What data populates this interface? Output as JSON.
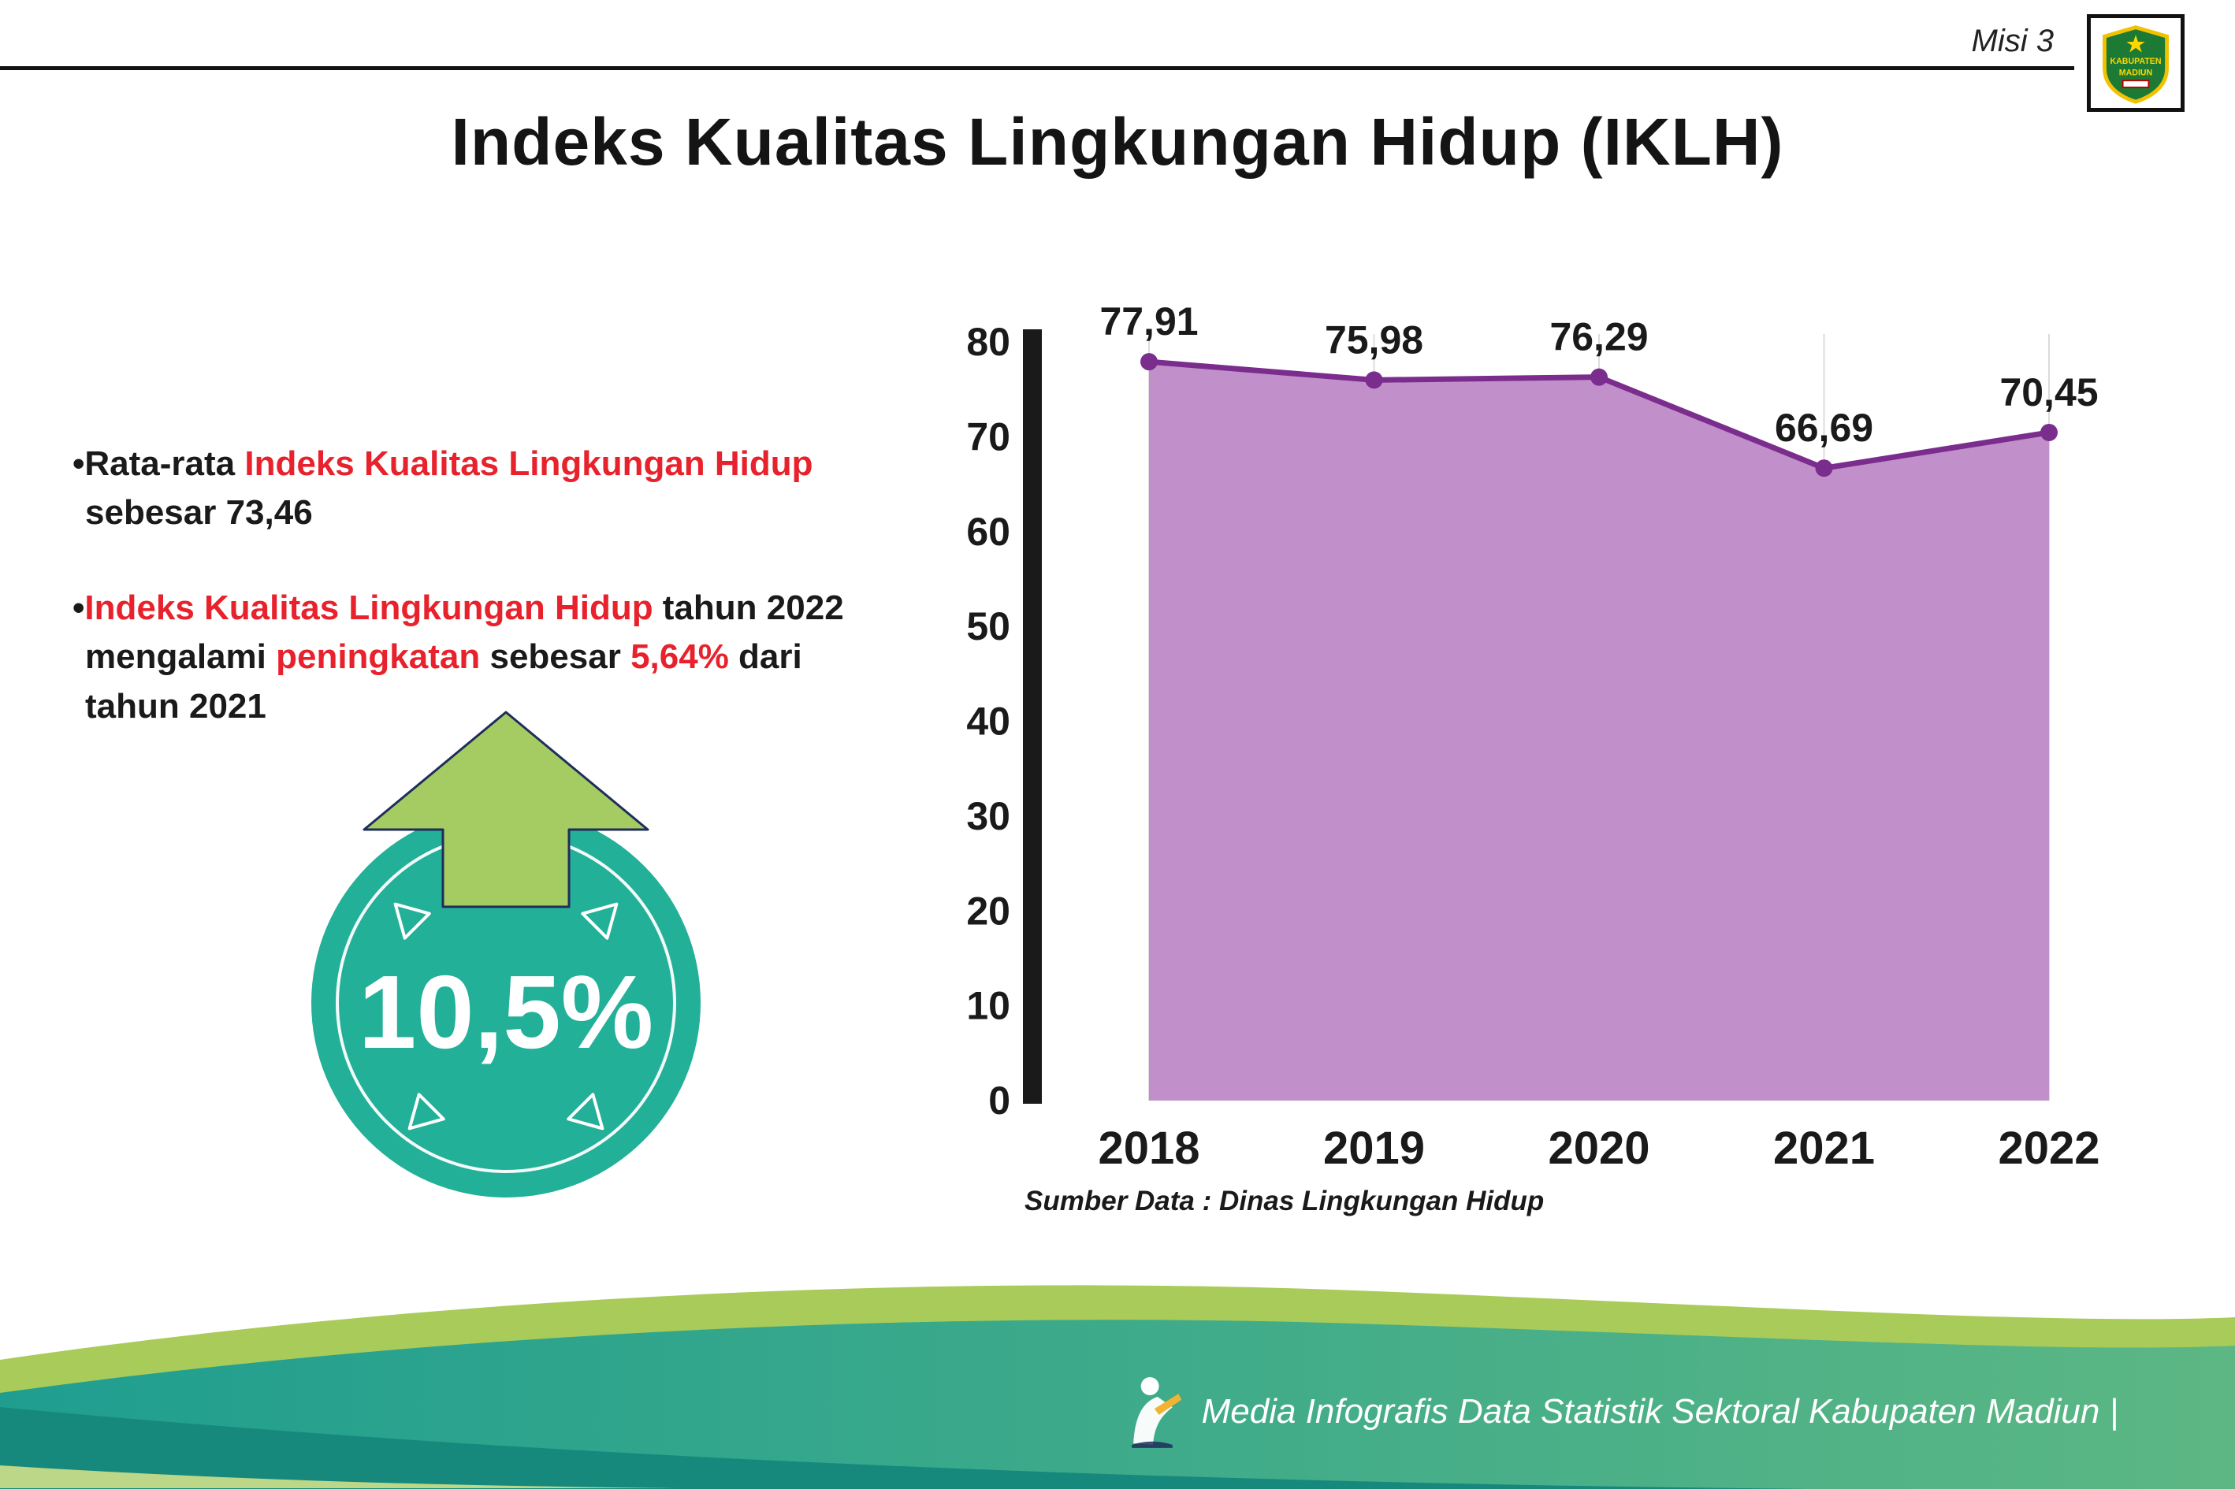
{
  "header": {
    "misi_label": "Misi 3",
    "title": "Indeks Kualitas Lingkungan Hidup (IKLH)",
    "logo_top_text": "KABUPATEN",
    "logo_bottom_text": "MADIUN"
  },
  "bullets": {
    "dot": "•",
    "b1": {
      "l1_black": "Rata-rata ",
      "l1_red": "Indeks Kualitas Lingkungan Hidup",
      "l2_black": "sebesar 73,46"
    },
    "b2": {
      "l1_red": "Indeks Kualitas Lingkungan Hidup",
      "l1_black": " tahun 2022",
      "l2_black1": "mengalami ",
      "l2_red1": "peningkatan",
      "l2_black2": " sebesar ",
      "l2_red2": "5,64%",
      "l2_black3": " dari",
      "l3_black": "tahun 2021"
    }
  },
  "badge": {
    "value": "10,5%"
  },
  "chart_data": {
    "type": "area",
    "title": "Indeks Kualitas Lingkungan Hidup (IKLH)",
    "categories": [
      "2018",
      "2019",
      "2020",
      "2021",
      "2022"
    ],
    "values": [
      77.91,
      75.98,
      76.29,
      66.69,
      70.45
    ],
    "value_labels": [
      "77,91",
      "75,98",
      "76,29",
      "66,69",
      "70,45"
    ],
    "series_name": "IKLH",
    "ylim": [
      0,
      80
    ],
    "yticks": [
      0,
      10,
      20,
      30,
      40,
      50,
      60,
      70,
      80
    ],
    "xlabel": "",
    "ylabel": "",
    "grid": "vertical-light",
    "legend": "none",
    "source": "Sumber Data : Dinas Lingkungan Hidup",
    "colors": {
      "area": "#c18fca",
      "line": "#7b2d8e",
      "point": "#7b2d8e",
      "axis": "#1a1a1a",
      "grid": "#dcdcdc"
    }
  },
  "footer": {
    "caption": "Media Infografis Data Statistik Sektoral Kabupaten Madiun |"
  },
  "colors": {
    "accent_red": "#e8222c",
    "badge_teal": "#23b098",
    "arrow_green": "#a4cc62",
    "footer_band_green": "#a9cb5a",
    "footer_teal_left": "#1f9e90",
    "footer_teal_right": "#5cb784",
    "footer_dark_teal": "#17897c"
  }
}
